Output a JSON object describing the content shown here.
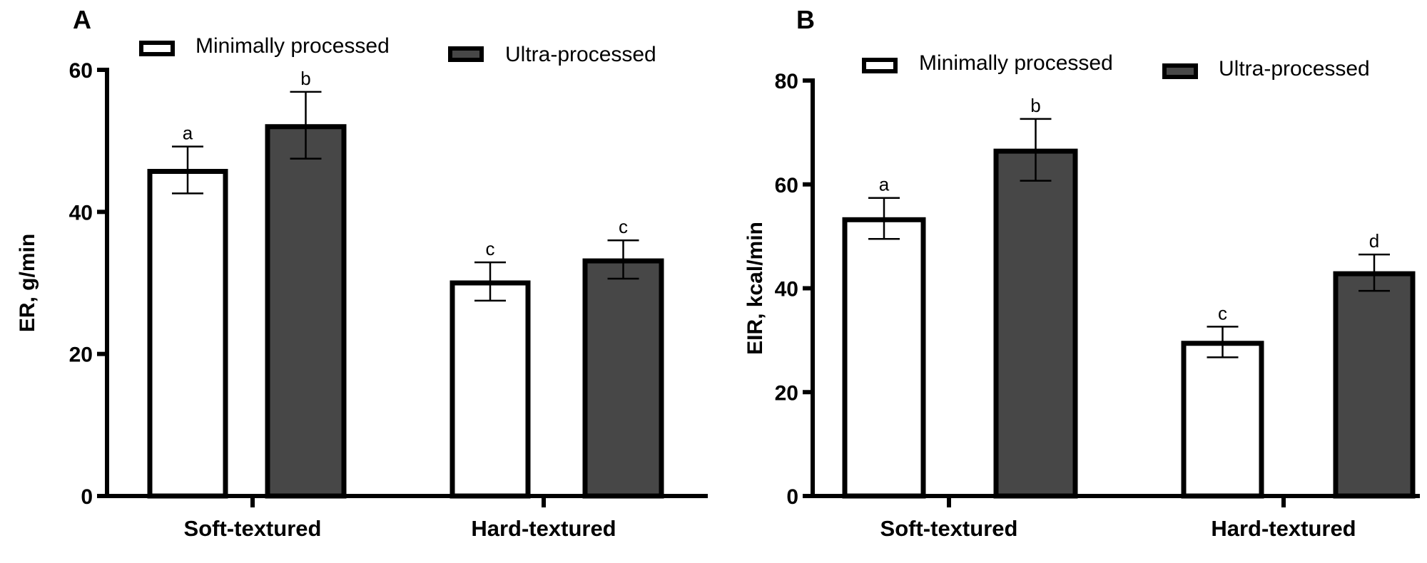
{
  "colors": {
    "minimally": "#ffffff",
    "ultra": "#474747",
    "stroke": "#000000"
  },
  "chart_data": [
    {
      "type": "bar",
      "panel": "A",
      "title": "",
      "xlabel": "",
      "ylabel": "ER, g/min",
      "ylim": [
        0,
        60
      ],
      "yticks": [
        0,
        20,
        40,
        60
      ],
      "categories": [
        "Soft-textured",
        "Hard-textured"
      ],
      "legend": {
        "placement": "top",
        "entries": [
          "Minimally processed",
          "Ultra-processed"
        ]
      },
      "series": [
        {
          "name": "Minimally processed",
          "values": [
            45.7,
            30.0
          ],
          "err_low": [
            42.6,
            27.5
          ],
          "err_high": [
            49.2,
            32.9
          ],
          "letters": [
            "a",
            "c"
          ]
        },
        {
          "name": "Ultra-processed",
          "values": [
            52.0,
            33.1
          ],
          "err_low": [
            47.5,
            30.6
          ],
          "err_high": [
            56.9,
            36.0
          ],
          "letters": [
            "b",
            "c"
          ]
        }
      ]
    },
    {
      "type": "bar",
      "panel": "B",
      "title": "",
      "xlabel": "",
      "ylabel": "EIR, kcal/min",
      "ylim": [
        0,
        80
      ],
      "yticks": [
        0,
        20,
        40,
        60,
        80
      ],
      "categories": [
        "Soft-textured",
        "Hard-textured"
      ],
      "legend": {
        "placement": "top",
        "entries": [
          "Minimally processed",
          "Ultra-processed"
        ]
      },
      "series": [
        {
          "name": "Minimally processed",
          "values": [
            53.2,
            29.4
          ],
          "err_low": [
            49.5,
            26.7
          ],
          "err_high": [
            57.4,
            32.6
          ],
          "letters": [
            "a",
            "c"
          ]
        },
        {
          "name": "Ultra-processed",
          "values": [
            66.4,
            42.8
          ],
          "err_low": [
            60.7,
            39.5
          ],
          "err_high": [
            72.6,
            46.5
          ],
          "letters": [
            "b",
            "d"
          ]
        }
      ]
    }
  ]
}
